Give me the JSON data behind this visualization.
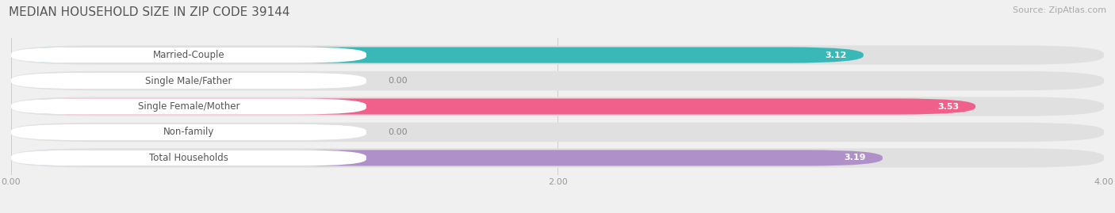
{
  "title": "MEDIAN HOUSEHOLD SIZE IN ZIP CODE 39144",
  "source": "Source: ZipAtlas.com",
  "categories": [
    "Married-Couple",
    "Single Male/Father",
    "Single Female/Mother",
    "Non-family",
    "Total Households"
  ],
  "values": [
    3.12,
    0.0,
    3.53,
    0.0,
    3.19
  ],
  "bar_colors": [
    "#3ab8b8",
    "#a8b8e8",
    "#f0608a",
    "#f5c89a",
    "#b090c8"
  ],
  "xlim": [
    0,
    4.0
  ],
  "xticks": [
    0.0,
    2.0,
    4.0
  ],
  "xtick_labels": [
    "0.00",
    "2.00",
    "4.00"
  ],
  "background_color": "#f0f0f0",
  "bar_bg_color": "#e0e0e0",
  "label_bg_color": "#ffffff",
  "title_fontsize": 11,
  "source_fontsize": 8,
  "value_fontsize": 8,
  "label_fontsize": 8.5,
  "tick_fontsize": 8
}
